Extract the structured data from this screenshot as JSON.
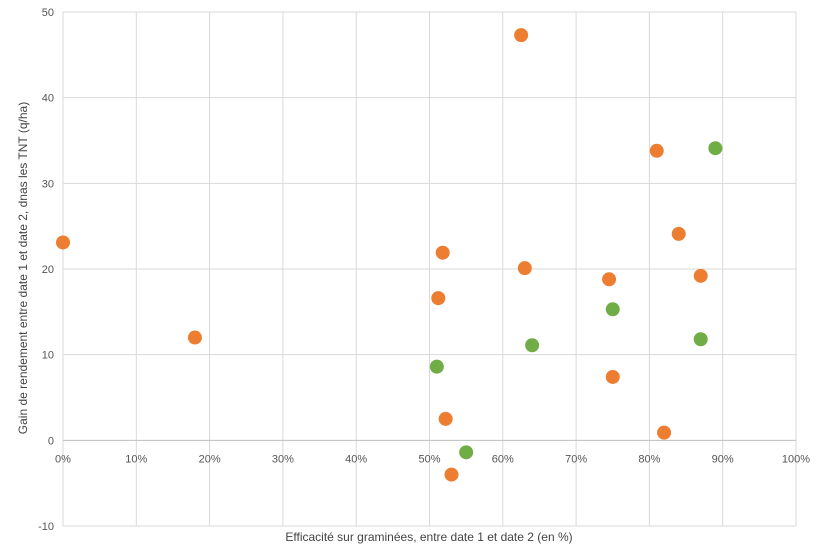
{
  "chart_data": {
    "type": "scatter",
    "xlabel": "Efficacité sur graminées, entre date 1 et date 2 (en %)",
    "ylabel": "Gain de rendement entre date 1 et date 2, dnas les TNT (q/ha)",
    "xlim": [
      0,
      1
    ],
    "ylim": [
      -10,
      50
    ],
    "x_ticks": [
      "0%",
      "10%",
      "20%",
      "30%",
      "40%",
      "50%",
      "60%",
      "70%",
      "80%",
      "90%",
      "100%"
    ],
    "y_ticks": [
      "-10",
      "0",
      "10",
      "20",
      "30",
      "40",
      "50"
    ],
    "grid": true,
    "series": [
      {
        "color": "#ED7D31",
        "points": [
          {
            "x": 0.0,
            "y": 23.1
          },
          {
            "x": 0.18,
            "y": 12.0
          },
          {
            "x": 0.512,
            "y": 16.6
          },
          {
            "x": 0.518,
            "y": 21.9
          },
          {
            "x": 0.522,
            "y": 2.5
          },
          {
            "x": 0.53,
            "y": -4.0
          },
          {
            "x": 0.625,
            "y": 47.3
          },
          {
            "x": 0.63,
            "y": 20.1
          },
          {
            "x": 0.745,
            "y": 18.8
          },
          {
            "x": 0.75,
            "y": 7.4
          },
          {
            "x": 0.81,
            "y": 33.8
          },
          {
            "x": 0.82,
            "y": 0.9
          },
          {
            "x": 0.84,
            "y": 24.1
          },
          {
            "x": 0.87,
            "y": 19.2
          }
        ]
      },
      {
        "color": "#70AD47",
        "points": [
          {
            "x": 0.51,
            "y": 8.6
          },
          {
            "x": 0.55,
            "y": -1.4
          },
          {
            "x": 0.64,
            "y": 11.1
          },
          {
            "x": 0.75,
            "y": 15.3
          },
          {
            "x": 0.87,
            "y": 11.8
          },
          {
            "x": 0.89,
            "y": 34.1
          }
        ]
      }
    ]
  }
}
